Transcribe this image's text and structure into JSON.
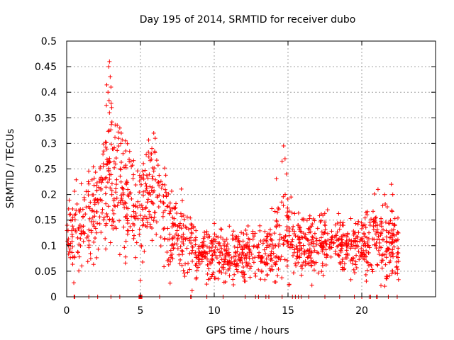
{
  "chart_data": {
    "type": "scatter",
    "title": "Day 195 of 2014, SRMTID for receiver dubo",
    "xlabel": "GPS time / hours",
    "ylabel": "SRMTID / TECUs",
    "xlim": [
      0,
      25
    ],
    "ylim": [
      0,
      0.5
    ],
    "xticks": [
      0,
      5,
      10,
      15,
      20
    ],
    "xtick_labels": [
      "0",
      "5",
      "10",
      "15",
      "20"
    ],
    "yticks": [
      0,
      0.05,
      0.1,
      0.15,
      0.2,
      0.25,
      0.3,
      0.35,
      0.4,
      0.45,
      0.5
    ],
    "ytick_labels": [
      "0",
      "0.05",
      "0.1",
      "0.15",
      "0.2",
      "0.25",
      "0.3",
      "0.35",
      "0.4",
      "0.45",
      "0.5"
    ],
    "grid": true,
    "marker": "+",
    "color": "#ff0000",
    "trend": [
      [
        0.0,
        0.12
      ],
      [
        0.5,
        0.13
      ],
      [
        1.0,
        0.14
      ],
      [
        1.5,
        0.15
      ],
      [
        2.0,
        0.17
      ],
      [
        2.5,
        0.22
      ],
      [
        3.0,
        0.25
      ],
      [
        3.5,
        0.22
      ],
      [
        4.0,
        0.2
      ],
      [
        4.5,
        0.18
      ],
      [
        5.0,
        0.17
      ],
      [
        5.5,
        0.2
      ],
      [
        6.0,
        0.21
      ],
      [
        6.5,
        0.19
      ],
      [
        7.0,
        0.13
      ],
      [
        7.5,
        0.12
      ],
      [
        8.0,
        0.11
      ],
      [
        8.5,
        0.1
      ],
      [
        9.0,
        0.09
      ],
      [
        10.0,
        0.08
      ],
      [
        11.0,
        0.085
      ],
      [
        12.0,
        0.08
      ],
      [
        13.0,
        0.08
      ],
      [
        14.0,
        0.1
      ],
      [
        14.5,
        0.13
      ],
      [
        15.0,
        0.11
      ],
      [
        16.0,
        0.1
      ],
      [
        17.0,
        0.1
      ],
      [
        18.0,
        0.11
      ],
      [
        19.0,
        0.1
      ],
      [
        20.0,
        0.1
      ],
      [
        20.5,
        0.11
      ],
      [
        21.0,
        0.12
      ],
      [
        21.5,
        0.1
      ],
      [
        22.0,
        0.12
      ],
      [
        22.5,
        0.09
      ]
    ],
    "spread": [
      [
        0.0,
        0.035
      ],
      [
        2.0,
        0.05
      ],
      [
        3.0,
        0.07
      ],
      [
        4.0,
        0.06
      ],
      [
        5.0,
        0.05
      ],
      [
        6.0,
        0.055
      ],
      [
        7.0,
        0.04
      ],
      [
        8.0,
        0.03
      ],
      [
        10.0,
        0.025
      ],
      [
        14.0,
        0.03
      ],
      [
        14.6,
        0.06
      ],
      [
        15.5,
        0.03
      ],
      [
        20.0,
        0.025
      ],
      [
        21.0,
        0.04
      ],
      [
        22.0,
        0.04
      ],
      [
        22.6,
        0.03
      ]
    ],
    "highlights": [
      [
        2.9,
        0.46
      ],
      [
        2.85,
        0.45
      ],
      [
        2.95,
        0.43
      ],
      [
        3.0,
        0.41
      ],
      [
        2.8,
        0.4
      ],
      [
        3.05,
        0.37
      ],
      [
        2.9,
        0.36
      ],
      [
        3.6,
        0.33
      ],
      [
        3.7,
        0.32
      ],
      [
        5.9,
        0.32
      ],
      [
        6.0,
        0.31
      ],
      [
        14.7,
        0.295
      ],
      [
        14.8,
        0.27
      ],
      [
        14.6,
        0.265
      ],
      [
        14.9,
        0.24
      ],
      [
        22.0,
        0.22
      ],
      [
        21.1,
        0.21
      ],
      [
        22.1,
        0.2
      ],
      [
        8.5,
        0.012
      ],
      [
        21.3,
        0.022
      ]
    ],
    "zero_points": [
      0.5,
      0.55,
      1.5,
      2.1,
      3.0,
      3.6,
      4.9,
      4.95,
      5.0,
      5.05,
      5.1,
      6.3,
      8.4,
      8.45,
      9.5,
      10.6,
      12.1,
      12.8,
      13.0,
      13.5,
      13.7,
      14.6,
      15.3,
      15.5,
      15.7,
      15.9,
      16.4,
      17.5,
      18.5,
      19.5,
      20.0,
      20.5,
      20.6,
      21.0,
      21.05,
      21.8,
      22.4
    ],
    "n_points": 1500
  }
}
